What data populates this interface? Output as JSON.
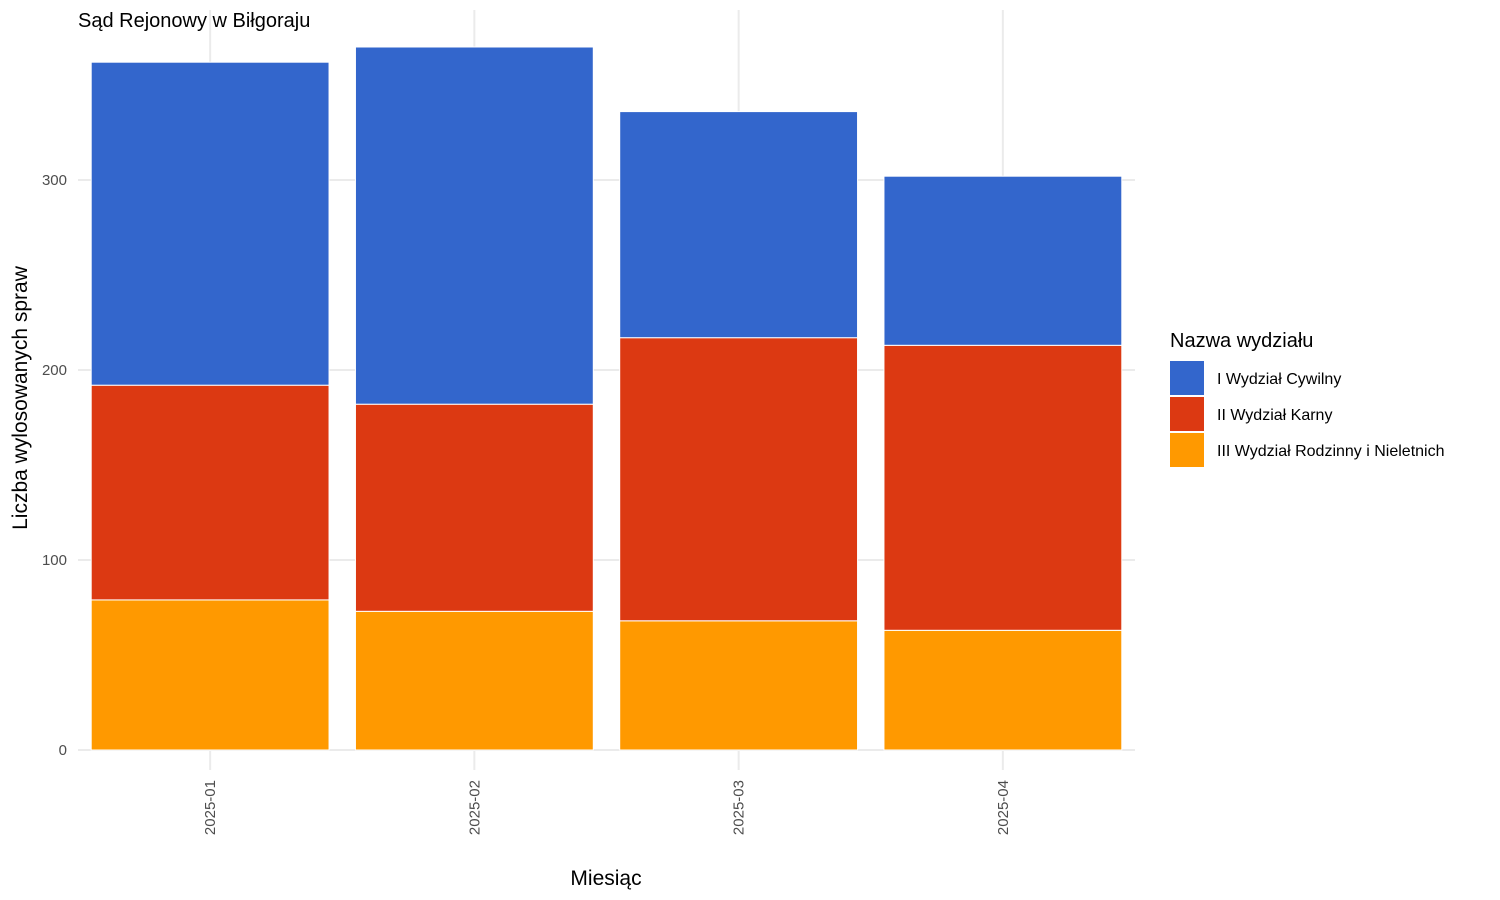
{
  "chart_data": {
    "type": "bar",
    "stacked": true,
    "title": "Sąd Rejonowy w Biłgoraju",
    "xlabel": "Miesiąc",
    "ylabel": "Liczba wylosowanych spraw",
    "categories": [
      "2025-01",
      "2025-02",
      "2025-03",
      "2025-04"
    ],
    "ylim": [
      0,
      390
    ],
    "yticks": [
      0,
      100,
      200,
      300
    ],
    "grid": true,
    "legend": {
      "title": "Nazwa wydziału",
      "placement": "right"
    },
    "series": [
      {
        "name": "I Wydział Cywilny",
        "color": "#3366CC",
        "values": [
          170,
          188,
          119,
          89
        ]
      },
      {
        "name": "II Wydział Karny",
        "color": "#DC3912",
        "values": [
          113,
          109,
          149,
          150
        ]
      },
      {
        "name": "III Wydział Rodzinny i Nieletnich",
        "color": "#FF9900",
        "values": [
          79,
          73,
          68,
          63
        ]
      }
    ]
  }
}
